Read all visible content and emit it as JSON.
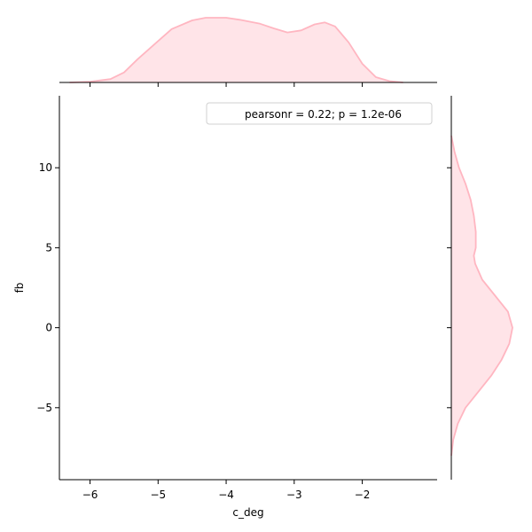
{
  "chart_data": {
    "type": "jointplot",
    "xlabel": "c_deg",
    "ylabel": "fb",
    "xlim": [
      -6.45,
      -0.9
    ],
    "ylim": [
      -9.5,
      14.5
    ],
    "x_ticks": [
      -6,
      -5,
      -4,
      -3,
      -2
    ],
    "x_tick_labels": [
      "−6",
      "−5",
      "−4",
      "−3",
      "−2"
    ],
    "y_ticks": [
      -5,
      0,
      5,
      10
    ],
    "y_tick_labels": [
      "−5",
      "0",
      "5",
      "10"
    ],
    "legend": {
      "text": "pearsonr = 0.22; p = 1.2e-06",
      "placement": "top-right"
    },
    "grid": false,
    "joint_points": [],
    "marginal_x_kde": {
      "x": [
        -6.3,
        -6.0,
        -5.7,
        -5.5,
        -5.3,
        -5.0,
        -4.8,
        -4.5,
        -4.3,
        -4.0,
        -3.8,
        -3.5,
        -3.3,
        -3.1,
        -2.9,
        -2.7,
        -2.55,
        -2.4,
        -2.2,
        -2.0,
        -1.8,
        -1.6,
        -1.4
      ],
      "density": [
        0.0,
        0.01,
        0.05,
        0.15,
        0.35,
        0.62,
        0.8,
        0.93,
        0.97,
        0.97,
        0.94,
        0.88,
        0.81,
        0.75,
        0.78,
        0.87,
        0.9,
        0.84,
        0.6,
        0.28,
        0.08,
        0.02,
        0.0
      ]
    },
    "marginal_y_kde": {
      "y": [
        -8.0,
        -7.0,
        -6.0,
        -5.0,
        -4.0,
        -3.0,
        -2.0,
        -1.0,
        0.0,
        1.0,
        2.0,
        3.0,
        4.0,
        4.5,
        5.0,
        6.0,
        7.0,
        8.0,
        9.0,
        10.0,
        11.0,
        12.0
      ],
      "density": [
        0.0,
        0.03,
        0.1,
        0.22,
        0.42,
        0.62,
        0.78,
        0.9,
        0.95,
        0.88,
        0.68,
        0.48,
        0.37,
        0.35,
        0.38,
        0.38,
        0.35,
        0.3,
        0.22,
        0.12,
        0.05,
        0.0
      ]
    },
    "color": "#ffb6c1",
    "fill_color": "#ffe4e8"
  }
}
